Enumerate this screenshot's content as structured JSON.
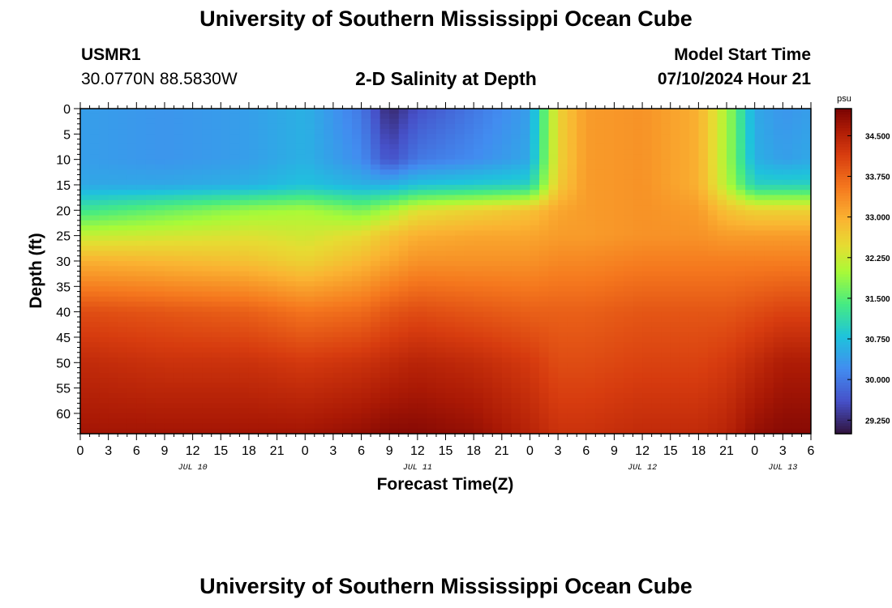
{
  "title": "University of Southern Mississippi Ocean Cube",
  "footer_title": "University of Southern Mississippi Ocean Cube",
  "station": {
    "id": "USMR1",
    "coords": "30.0770N  88.5830W"
  },
  "model_start": {
    "label": "Model Start Time",
    "value": "07/10/2024 Hour 21"
  },
  "chart_data": {
    "type": "heatmap",
    "title": "2-D Salinity at Depth",
    "xlabel": "Forecast Time(Z)",
    "ylabel": "Depth (ft)",
    "x_tick_labels": [
      "0",
      "3",
      "6",
      "9",
      "12",
      "15",
      "18",
      "21",
      "0",
      "3",
      "6",
      "9",
      "12",
      "15",
      "18",
      "21",
      "0",
      "3",
      "6",
      "9",
      "12",
      "15",
      "18",
      "21",
      "0",
      "3",
      "6"
    ],
    "x_range_hours": [
      0,
      78
    ],
    "date_labels": [
      {
        "label": "JUL 10",
        "hour": 12
      },
      {
        "label": "JUL 11",
        "hour": 36
      },
      {
        "label": "JUL 12",
        "hour": 60
      },
      {
        "label": "JUL 13",
        "hour": 75
      }
    ],
    "y_tick_labels": [
      "0",
      "5",
      "10",
      "15",
      "20",
      "25",
      "30",
      "35",
      "40",
      "45",
      "50",
      "55",
      "60"
    ],
    "y_range_ft": [
      0,
      64
    ],
    "colorbar": {
      "unit": "psu",
      "range": [
        29.0,
        35.0
      ],
      "ticks": [
        "34.500",
        "33.750",
        "33.000",
        "32.250",
        "31.500",
        "30.750",
        "30.000",
        "29.250"
      ],
      "tick_values": [
        34.5,
        33.75,
        33.0,
        32.25,
        31.5,
        30.75,
        30.0,
        29.25
      ]
    },
    "depths_ft": [
      0,
      10,
      15,
      20,
      25,
      30,
      40,
      50,
      64
    ],
    "hours": [
      0,
      9,
      18,
      24,
      30,
      33,
      36,
      42,
      48,
      51,
      54,
      60,
      66,
      69,
      72,
      75,
      78
    ],
    "salinity": [
      [
        30.4,
        30.3,
        30.4,
        30.6,
        30.0,
        29.2,
        29.6,
        30.0,
        30.4,
        32.6,
        33.2,
        33.3,
        33.0,
        32.0,
        30.5,
        30.3,
        30.4
      ],
      [
        30.4,
        30.3,
        30.4,
        30.6,
        30.2,
        29.6,
        30.0,
        30.2,
        30.5,
        32.6,
        33.2,
        33.3,
        33.0,
        32.0,
        30.6,
        30.4,
        30.5
      ],
      [
        30.5,
        30.5,
        30.6,
        30.8,
        30.6,
        30.6,
        30.8,
        30.9,
        31.0,
        32.7,
        33.2,
        33.3,
        33.0,
        32.1,
        31.0,
        31.0,
        31.0
      ],
      [
        31.3,
        31.6,
        31.9,
        32.0,
        31.7,
        32.0,
        32.4,
        32.6,
        32.8,
        33.1,
        33.2,
        33.3,
        33.2,
        32.8,
        32.6,
        32.6,
        32.6
      ],
      [
        32.2,
        32.3,
        32.4,
        32.3,
        32.5,
        32.8,
        33.0,
        33.1,
        33.1,
        33.2,
        33.2,
        33.3,
        33.3,
        33.2,
        33.2,
        33.2,
        33.2
      ],
      [
        33.0,
        32.9,
        32.8,
        32.6,
        32.9,
        33.1,
        33.3,
        33.3,
        33.3,
        33.4,
        33.4,
        33.5,
        33.5,
        33.5,
        33.5,
        33.5,
        33.5
      ],
      [
        34.0,
        33.9,
        33.8,
        33.6,
        33.7,
        33.9,
        34.0,
        33.9,
        33.8,
        33.8,
        33.8,
        33.9,
        33.9,
        33.9,
        34.0,
        34.1,
        34.1
      ],
      [
        34.4,
        34.3,
        34.3,
        34.2,
        34.3,
        34.4,
        34.5,
        34.4,
        34.2,
        34.0,
        34.0,
        34.1,
        34.1,
        34.2,
        34.4,
        34.6,
        34.6
      ],
      [
        34.7,
        34.7,
        34.7,
        34.7,
        34.8,
        34.9,
        34.9,
        34.8,
        34.5,
        34.3,
        34.3,
        34.4,
        34.4,
        34.5,
        34.8,
        34.9,
        34.9
      ]
    ]
  },
  "colors": {
    "background": "#ffffff",
    "frame": "#000000"
  }
}
